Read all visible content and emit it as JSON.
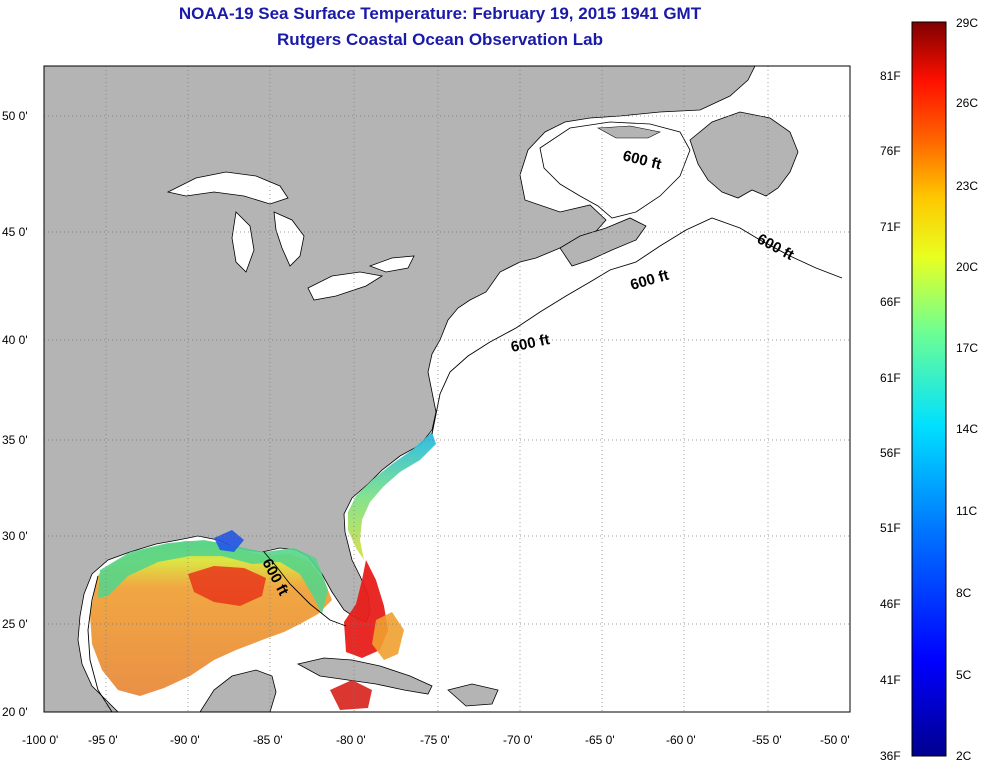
{
  "title": "NOAA-19 Sea Surface Temperature:  February 19, 2015 1941 GMT",
  "subtitle": "Rutgers Coastal Ocean Observation Lab",
  "map": {
    "lon_labels": [
      "-100 0'",
      "-95 0'",
      "-90 0'",
      "-85 0'",
      "-80 0'",
      "-75 0'",
      "-70 0'",
      "-65 0'",
      "-60 0'",
      "-55 0'",
      "-50 0'"
    ],
    "lat_labels": [
      "50 0'",
      "45 0'",
      "40 0'",
      "35 0'",
      "30 0'",
      "25 0'",
      "20 0'"
    ],
    "contour_label": "600 ft",
    "land_color": "#b4b4b4",
    "water_color": "#ffffff",
    "grid_style": "dotted"
  },
  "colorbar": {
    "fahrenheit_labels": [
      "81F",
      "76F",
      "71F",
      "66F",
      "61F",
      "56F",
      "51F",
      "46F",
      "41F",
      "36F"
    ],
    "celsius_labels": [
      "29C",
      "26C",
      "23C",
      "20C",
      "17C",
      "14C",
      "11C",
      "8C",
      "5C",
      "2C"
    ],
    "colors": [
      "#7f0000",
      "#ff0000",
      "#ff7a00",
      "#ffff00",
      "#80ff80",
      "#00ffff",
      "#0080ff",
      "#0000ff",
      "#00008f"
    ]
  }
}
